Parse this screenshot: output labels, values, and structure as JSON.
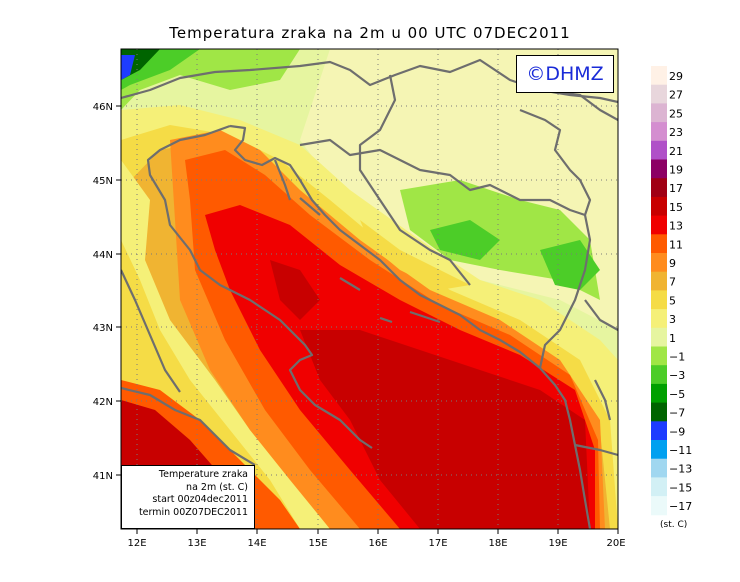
{
  "title": "Temperatura zraka na 2m u 00 UTC 07DEC2011",
  "copyright": "©DHMZ",
  "info": {
    "line1": "Temperature zraka",
    "line2": "na 2m (st. C)",
    "line3": "start 00z04dec2011",
    "line4": "termin 00Z07DEC2011"
  },
  "axes": {
    "lon_ticks": [
      "12E",
      "13E",
      "14E",
      "15E",
      "16E",
      "17E",
      "18E",
      "19E",
      "20E"
    ],
    "lat_ticks": [
      "46N",
      "45N",
      "44N",
      "43N",
      "42N",
      "41N"
    ]
  },
  "legend": {
    "units": "(st. C)",
    "labels": [
      "29",
      "27",
      "25",
      "23",
      "21",
      "19",
      "17",
      "15",
      "13",
      "11",
      "9",
      "7",
      "5",
      "3",
      "1",
      "−1",
      "−3",
      "−5",
      "−7",
      "−9",
      "−11",
      "−13",
      "−15",
      "−17"
    ],
    "colors": [
      "#fff1e6",
      "#e8d6dc",
      "#dcb4d2",
      "#d48ed0",
      "#b050c8",
      "#8c0064",
      "#a00014",
      "#c80000",
      "#f00000",
      "#ff5a00",
      "#ff8c1e",
      "#f0b432",
      "#f5dc46",
      "#f5f078",
      "#e6f5a0",
      "#a0e646",
      "#4ccd28",
      "#00a000",
      "#006400",
      "#1e3cff",
      "#00a0f0",
      "#a0d7f0",
      "#d2f0f5",
      "#ebfafa"
    ]
  },
  "map_colors": {
    "coast_line": "#6e6e6e",
    "grid_line": "#7a7a7a"
  }
}
